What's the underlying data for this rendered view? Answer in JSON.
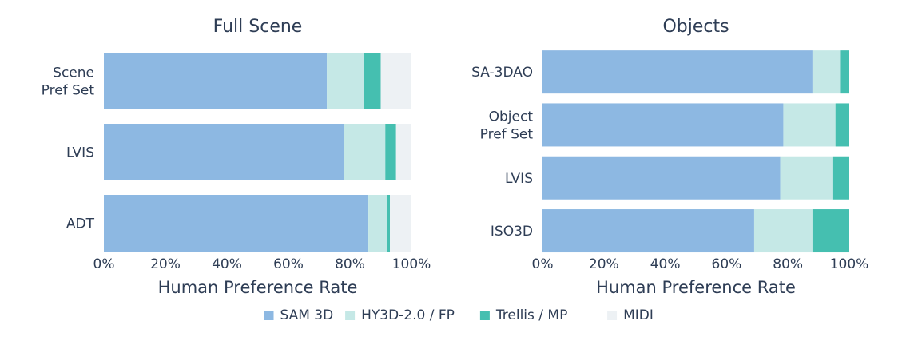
{
  "colors": {
    "SAM 3D": "#8db8e2",
    "HY3D-2.0 / FP": "#c5e8e6",
    "Trellis / MP": "#45bfb0",
    "MIDI": "#edf1f4",
    "text": "#2e3d55"
  },
  "chart_data": [
    {
      "type": "bar",
      "orientation": "horizontal",
      "stacked": true,
      "title": "Full Scene",
      "xlabel": "Human Preference Rate",
      "ylabel": "",
      "xlim": [
        0,
        100
      ],
      "xticks": [
        "0%",
        "20%",
        "40%",
        "60%",
        "80%",
        "100%"
      ],
      "categories": [
        "Scene\nPref Set",
        "LVIS",
        "ADT"
      ],
      "series": [
        {
          "name": "SAM 3D",
          "values": [
            72.5,
            78,
            86
          ]
        },
        {
          "name": "HY3D-2.0 / FP",
          "values": [
            12,
            13.5,
            6
          ]
        },
        {
          "name": "Trellis / MP",
          "values": [
            5.5,
            3.5,
            1
          ]
        },
        {
          "name": "MIDI",
          "values": [
            10,
            5,
            7
          ]
        }
      ]
    },
    {
      "type": "bar",
      "orientation": "horizontal",
      "stacked": true,
      "title": "Objects",
      "xlabel": "Human Preference Rate",
      "ylabel": "",
      "xlim": [
        0,
        100
      ],
      "xticks": [
        "0%",
        "20%",
        "40%",
        "60%",
        "80%",
        "100%"
      ],
      "categories": [
        "SA-3DAO",
        "Object\nPref Set",
        "LVIS",
        "ISO3D"
      ],
      "series": [
        {
          "name": "SAM 3D",
          "values": [
            88,
            78.5,
            77.5,
            69
          ]
        },
        {
          "name": "HY3D-2.0 / FP",
          "values": [
            9,
            17,
            17,
            19
          ]
        },
        {
          "name": "Trellis / MP",
          "values": [
            3,
            4.5,
            5.5,
            12
          ]
        }
      ]
    }
  ],
  "legend": {
    "position": "bottom-center",
    "entries": [
      "SAM 3D",
      "HY3D-2.0 / FP",
      "Trellis / MP",
      "MIDI"
    ]
  }
}
